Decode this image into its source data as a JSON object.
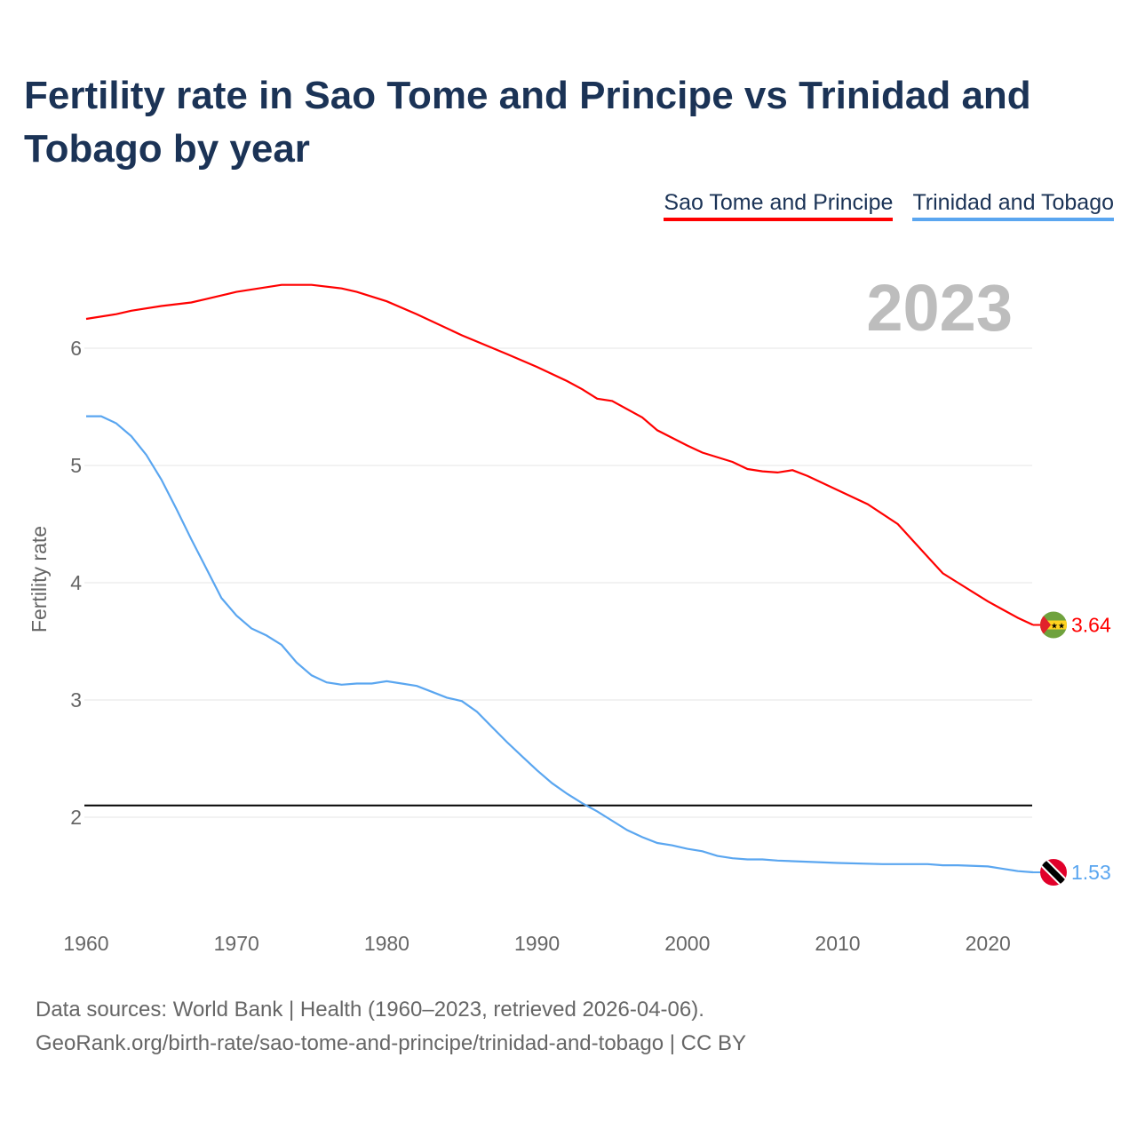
{
  "chart_data": {
    "type": "line",
    "title": "Fertility rate in Sao Tome and Principe vs Trinidad and Tobago by year",
    "xlabel": "",
    "ylabel": "Fertility rate",
    "xlim": [
      1960,
      2023
    ],
    "ylim": [
      1.2,
      6.7
    ],
    "x_ticks": [
      1960,
      1970,
      1980,
      1990,
      2000,
      2010,
      2020
    ],
    "y_ticks": [
      2,
      3,
      4,
      5,
      6
    ],
    "grid": true,
    "legend_position": "top-right",
    "year_label": "2023",
    "reference_line": {
      "value": 2.1,
      "color": "#000000"
    },
    "series": [
      {
        "name": "Sao Tome and Principe",
        "color": "#ff0000",
        "end_label": "3.64",
        "flag": "sao-tome-flag",
        "points": [
          [
            1960,
            6.25
          ],
          [
            1962,
            6.29
          ],
          [
            1963,
            6.32
          ],
          [
            1965,
            6.36
          ],
          [
            1967,
            6.39
          ],
          [
            1968,
            6.42
          ],
          [
            1970,
            6.48
          ],
          [
            1973,
            6.54
          ],
          [
            1975,
            6.54
          ],
          [
            1977,
            6.51
          ],
          [
            1978,
            6.48
          ],
          [
            1980,
            6.4
          ],
          [
            1982,
            6.29
          ],
          [
            1985,
            6.11
          ],
          [
            1988,
            5.95
          ],
          [
            1990,
            5.84
          ],
          [
            1992,
            5.72
          ],
          [
            1993,
            5.65
          ],
          [
            1994,
            5.57
          ],
          [
            1995,
            5.55
          ],
          [
            1997,
            5.41
          ],
          [
            1998,
            5.3
          ],
          [
            2000,
            5.17
          ],
          [
            2001,
            5.11
          ],
          [
            2003,
            5.03
          ],
          [
            2004,
            4.97
          ],
          [
            2005,
            4.95
          ],
          [
            2006,
            4.94
          ],
          [
            2007,
            4.96
          ],
          [
            2008,
            4.91
          ],
          [
            2010,
            4.79
          ],
          [
            2012,
            4.67
          ],
          [
            2014,
            4.5
          ],
          [
            2015,
            4.36
          ],
          [
            2016,
            4.22
          ],
          [
            2017,
            4.08
          ],
          [
            2018,
            4.0
          ],
          [
            2019,
            3.92
          ],
          [
            2020,
            3.84
          ],
          [
            2021,
            3.77
          ],
          [
            2022,
            3.7
          ],
          [
            2023,
            3.64
          ]
        ]
      },
      {
        "name": "Trinidad and Tobago",
        "color": "#5aa6f0",
        "end_label": "1.53",
        "flag": "trinidad-flag",
        "points": [
          [
            1960,
            5.42
          ],
          [
            1961,
            5.42
          ],
          [
            1962,
            5.36
          ],
          [
            1963,
            5.25
          ],
          [
            1964,
            5.09
          ],
          [
            1965,
            4.88
          ],
          [
            1966,
            4.63
          ],
          [
            1967,
            4.37
          ],
          [
            1968,
            4.12
          ],
          [
            1969,
            3.87
          ],
          [
            1970,
            3.72
          ],
          [
            1971,
            3.61
          ],
          [
            1972,
            3.55
          ],
          [
            1973,
            3.47
          ],
          [
            1974,
            3.32
          ],
          [
            1975,
            3.21
          ],
          [
            1976,
            3.15
          ],
          [
            1977,
            3.13
          ],
          [
            1978,
            3.14
          ],
          [
            1979,
            3.14
          ],
          [
            1980,
            3.16
          ],
          [
            1981,
            3.14
          ],
          [
            1982,
            3.12
          ],
          [
            1983,
            3.07
          ],
          [
            1984,
            3.02
          ],
          [
            1985,
            2.99
          ],
          [
            1986,
            2.9
          ],
          [
            1987,
            2.77
          ],
          [
            1988,
            2.64
          ],
          [
            1989,
            2.52
          ],
          [
            1990,
            2.4
          ],
          [
            1991,
            2.29
          ],
          [
            1992,
            2.2
          ],
          [
            1993,
            2.12
          ],
          [
            1994,
            2.05
          ],
          [
            1995,
            1.97
          ],
          [
            1996,
            1.89
          ],
          [
            1997,
            1.83
          ],
          [
            1998,
            1.78
          ],
          [
            1999,
            1.76
          ],
          [
            2000,
            1.73
          ],
          [
            2001,
            1.71
          ],
          [
            2002,
            1.67
          ],
          [
            2003,
            1.65
          ],
          [
            2004,
            1.64
          ],
          [
            2005,
            1.64
          ],
          [
            2006,
            1.63
          ],
          [
            2010,
            1.61
          ],
          [
            2013,
            1.6
          ],
          [
            2016,
            1.6
          ],
          [
            2017,
            1.59
          ],
          [
            2018,
            1.59
          ],
          [
            2020,
            1.58
          ],
          [
            2021,
            1.56
          ],
          [
            2022,
            1.54
          ],
          [
            2023,
            1.53
          ]
        ]
      }
    ]
  },
  "footer": {
    "line1": "Data sources: World Bank | Health (1960–2023, retrieved 2026-04-06).",
    "line2": "GeoRank.org/birth-rate/sao-tome-and-principe/trinidad-and-tobago | CC BY"
  }
}
